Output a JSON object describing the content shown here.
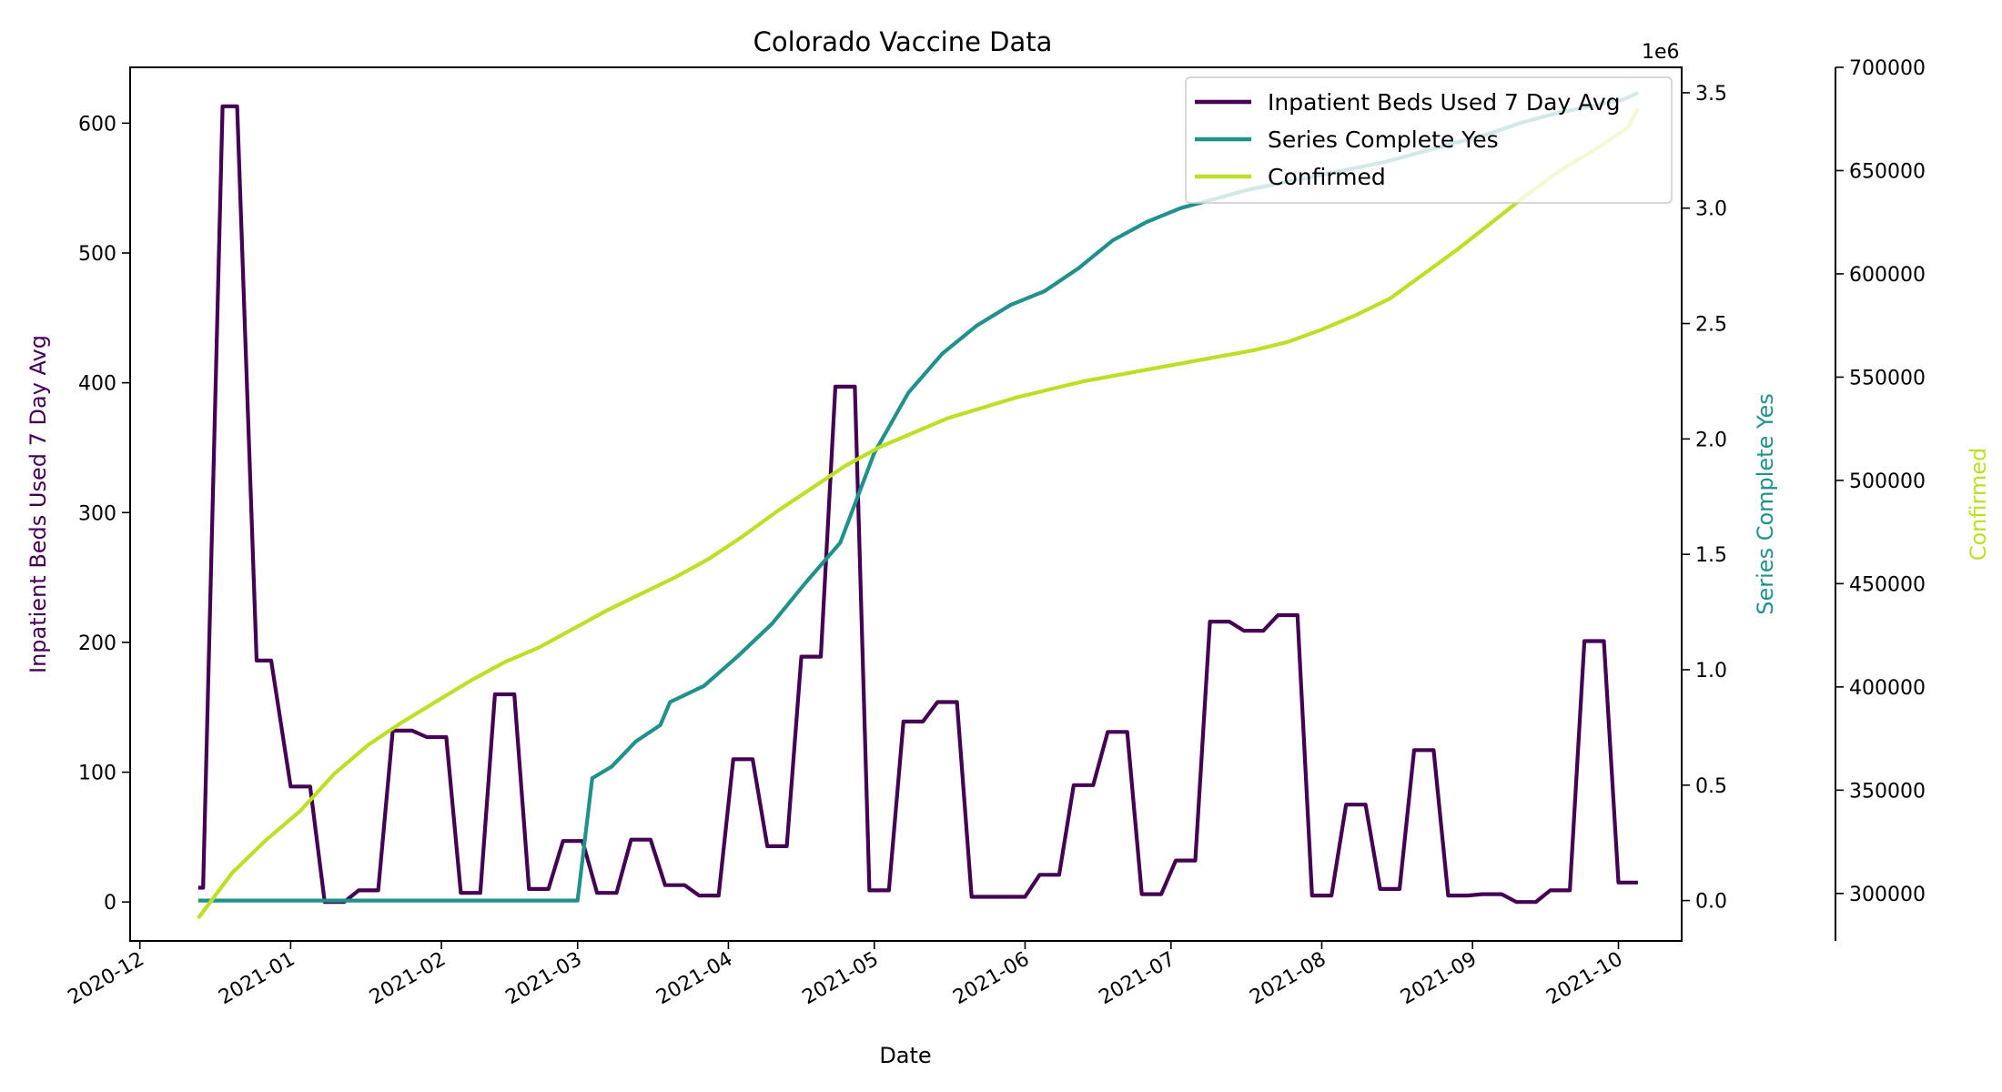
{
  "chart_data": {
    "type": "line",
    "title": "Colorado Vaccine Data",
    "xlabel": "Date",
    "x_ticks": [
      "2020-12",
      "2021-01",
      "2021-02",
      "2021-03",
      "2021-04",
      "2021-05",
      "2021-06",
      "2021-07",
      "2021-08",
      "2021-09",
      "2021-10"
    ],
    "xlim": [
      "2020-11-29",
      "2021-10-14"
    ],
    "legend_position": "upper right",
    "grid": false,
    "axes": [
      {
        "id": "left",
        "label": "Inpatient Beds Used 7 Day Avg",
        "color": "#440154",
        "ylim": [
          -30,
          643
        ],
        "ticks": [
          "0",
          "100",
          "200",
          "300",
          "400",
          "500",
          "600"
        ],
        "tick_values": [
          0,
          100,
          200,
          300,
          400,
          500,
          600
        ]
      },
      {
        "id": "right1",
        "label": "Series Complete Yes",
        "color": "#21918c",
        "ylim": [
          -175000,
          3610000
        ],
        "offset_label": "1e6",
        "ticks": [
          "0.0",
          "0.5",
          "1.0",
          "1.5",
          "2.0",
          "2.5",
          "3.0",
          "3.5"
        ],
        "tick_values": [
          0,
          500000,
          1000000,
          1500000,
          2000000,
          2500000,
          3000000,
          3500000
        ]
      },
      {
        "id": "right2",
        "label": "Confirmed",
        "color": "#bddf26",
        "ylim": [
          277000,
          700000
        ],
        "ticks": [
          "300000",
          "350000",
          "400000",
          "450000",
          "500000",
          "550000",
          "600000",
          "650000",
          "700000"
        ],
        "tick_values": [
          300000,
          350000,
          400000,
          450000,
          500000,
          550000,
          600000,
          650000,
          700000
        ]
      }
    ],
    "series": [
      {
        "name": "Inpatient Beds Used 7 Day Avg",
        "axis": "left",
        "color": "#440154",
        "x": [
          "2020-12-13",
          "2020-12-14",
          "2020-12-18",
          "2020-12-21",
          "2020-12-25",
          "2020-12-28",
          "2021-01-01",
          "2021-01-05",
          "2021-01-08",
          "2021-01-12",
          "2021-01-15",
          "2021-01-19",
          "2021-01-22",
          "2021-01-26",
          "2021-01-29",
          "2021-02-02",
          "2021-02-05",
          "2021-02-09",
          "2021-02-12",
          "2021-02-16",
          "2021-02-19",
          "2021-02-23",
          "2021-02-26",
          "2021-03-02",
          "2021-03-05",
          "2021-03-09",
          "2021-03-12",
          "2021-03-16",
          "2021-03-19",
          "2021-03-23",
          "2021-03-26",
          "2021-03-30",
          "2021-04-02",
          "2021-04-06",
          "2021-04-09",
          "2021-04-13",
          "2021-04-16",
          "2021-04-20",
          "2021-04-23",
          "2021-04-27",
          "2021-04-30",
          "2021-05-04",
          "2021-05-07",
          "2021-05-11",
          "2021-05-14",
          "2021-05-18",
          "2021-05-21",
          "2021-05-25",
          "2021-05-28",
          "2021-06-01",
          "2021-06-04",
          "2021-06-08",
          "2021-06-11",
          "2021-06-15",
          "2021-06-18",
          "2021-06-22",
          "2021-06-25",
          "2021-06-29",
          "2021-07-02",
          "2021-07-06",
          "2021-07-09",
          "2021-07-13",
          "2021-07-16",
          "2021-07-20",
          "2021-07-23",
          "2021-07-27",
          "2021-07-30",
          "2021-08-03",
          "2021-08-06",
          "2021-08-10",
          "2021-08-13",
          "2021-08-17",
          "2021-08-20",
          "2021-08-24",
          "2021-08-27",
          "2021-08-31",
          "2021-09-03",
          "2021-09-07",
          "2021-09-10",
          "2021-09-14",
          "2021-09-17",
          "2021-09-21",
          "2021-09-24",
          "2021-09-28",
          "2021-10-01",
          "2021-10-05"
        ],
        "y": [
          11,
          11,
          613,
          613,
          186,
          186,
          89,
          89,
          0,
          0,
          9,
          9,
          132,
          132,
          127,
          127,
          7,
          7,
          160,
          160,
          10,
          10,
          47,
          47,
          7,
          7,
          48,
          48,
          13,
          13,
          5,
          5,
          110,
          110,
          43,
          43,
          189,
          189,
          397,
          397,
          9,
          9,
          139,
          139,
          154,
          154,
          4,
          4,
          4,
          4,
          21,
          21,
          90,
          90,
          131,
          131,
          6,
          6,
          32,
          32,
          216,
          216,
          209,
          209,
          221,
          221,
          5,
          5,
          75,
          75,
          10,
          10,
          117,
          117,
          5,
          5,
          6,
          6,
          0,
          0,
          9,
          9,
          201,
          201,
          15,
          15
        ]
      },
      {
        "name": "Series Complete Yes",
        "axis": "right1",
        "color": "#21918c",
        "x": [
          "2020-12-13",
          "2021-01-01",
          "2021-02-01",
          "2021-03-01",
          "2021-03-04",
          "2021-03-08",
          "2021-03-13",
          "2021-03-18",
          "2021-03-20",
          "2021-03-27",
          "2021-04-03",
          "2021-04-10",
          "2021-04-17",
          "2021-04-24",
          "2021-05-01",
          "2021-05-08",
          "2021-05-15",
          "2021-05-22",
          "2021-05-29",
          "2021-06-05",
          "2021-06-12",
          "2021-06-19",
          "2021-06-26",
          "2021-07-03",
          "2021-07-10",
          "2021-07-17",
          "2021-07-24",
          "2021-07-31",
          "2021-08-07",
          "2021-08-14",
          "2021-08-21",
          "2021-08-28",
          "2021-09-04",
          "2021-09-11",
          "2021-09-18",
          "2021-09-25",
          "2021-10-02",
          "2021-10-05"
        ],
        "y": [
          0,
          0,
          0,
          0,
          530000,
          580000,
          690000,
          760000,
          860000,
          930000,
          1060000,
          1200000,
          1380000,
          1550000,
          1940000,
          2200000,
          2370000,
          2490000,
          2580000,
          2640000,
          2740000,
          2860000,
          2940000,
          3000000,
          3040000,
          3080000,
          3110000,
          3140000,
          3170000,
          3200000,
          3240000,
          3280000,
          3320000,
          3370000,
          3410000,
          3440000,
          3470000,
          3500000
        ]
      },
      {
        "name": "Confirmed",
        "axis": "right2",
        "color": "#bddf26",
        "x": [
          "2020-12-13",
          "2020-12-20",
          "2020-12-27",
          "2021-01-03",
          "2021-01-10",
          "2021-01-17",
          "2021-01-24",
          "2021-01-31",
          "2021-02-07",
          "2021-02-14",
          "2021-02-21",
          "2021-02-28",
          "2021-03-07",
          "2021-03-14",
          "2021-03-21",
          "2021-03-28",
          "2021-04-04",
          "2021-04-11",
          "2021-04-18",
          "2021-04-25",
          "2021-05-02",
          "2021-05-09",
          "2021-05-16",
          "2021-05-23",
          "2021-05-30",
          "2021-06-06",
          "2021-06-13",
          "2021-06-20",
          "2021-06-27",
          "2021-07-04",
          "2021-07-11",
          "2021-07-18",
          "2021-07-25",
          "2021-08-01",
          "2021-08-08",
          "2021-08-15",
          "2021-08-22",
          "2021-08-29",
          "2021-09-05",
          "2021-09-12",
          "2021-09-19",
          "2021-09-26",
          "2021-10-03",
          "2021-10-05"
        ],
        "y": [
          288000,
          310000,
          326000,
          340000,
          358000,
          372000,
          383000,
          393000,
          403000,
          412000,
          419000,
          428000,
          437000,
          445000,
          453000,
          462000,
          473000,
          485000,
          496000,
          507000,
          516000,
          523000,
          530000,
          535000,
          540000,
          544000,
          548000,
          551000,
          554000,
          557000,
          560000,
          563000,
          567000,
          573000,
          580000,
          588000,
          600000,
          612000,
          625000,
          638000,
          650000,
          660000,
          671000,
          680000
        ]
      }
    ]
  }
}
